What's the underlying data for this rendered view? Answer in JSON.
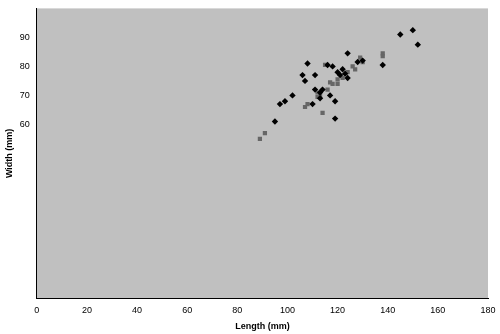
{
  "chart_data": {
    "type": "scatter",
    "x_label": "Length (mm)",
    "y_label": "Width (mm)",
    "xlim": [
      0,
      180
    ],
    "xticks": [
      0,
      20,
      40,
      60,
      80,
      100,
      120,
      140,
      160,
      180
    ],
    "ylim": [
      0,
      100
    ],
    "yticks": [
      60,
      70,
      80,
      90
    ],
    "grid": false,
    "series": [
      {
        "color": "#000000",
        "marker": "diamond",
        "x": [
          95,
          97,
          99,
          102,
          106,
          107,
          108,
          110,
          111,
          111,
          113,
          113,
          114,
          116,
          117,
          118,
          119,
          119,
          120,
          121,
          122,
          123,
          124,
          124,
          128,
          130,
          138,
          145,
          150,
          152
        ],
        "values": [
          61,
          67,
          68,
          70,
          77,
          75,
          81,
          67,
          77,
          72,
          69,
          71,
          72,
          80.5,
          70,
          80,
          68,
          62,
          78,
          77,
          79,
          77.5,
          84.5,
          76,
          81.5,
          82,
          80.5,
          91,
          92.5,
          87.5
        ]
      },
      {
        "color": "#666666",
        "marker": "square",
        "x": [
          89,
          91,
          107,
          108,
          112,
          112,
          113,
          114,
          115,
          116,
          117,
          118,
          120,
          120,
          122,
          124,
          126,
          127,
          129,
          130,
          138,
          138
        ],
        "values": [
          55,
          57,
          66,
          67,
          71,
          69.5,
          70,
          64,
          80.5,
          72,
          74.5,
          74,
          75.5,
          74,
          76,
          78,
          80,
          79,
          83,
          81.5,
          84.5,
          83.5
        ]
      }
    ]
  }
}
